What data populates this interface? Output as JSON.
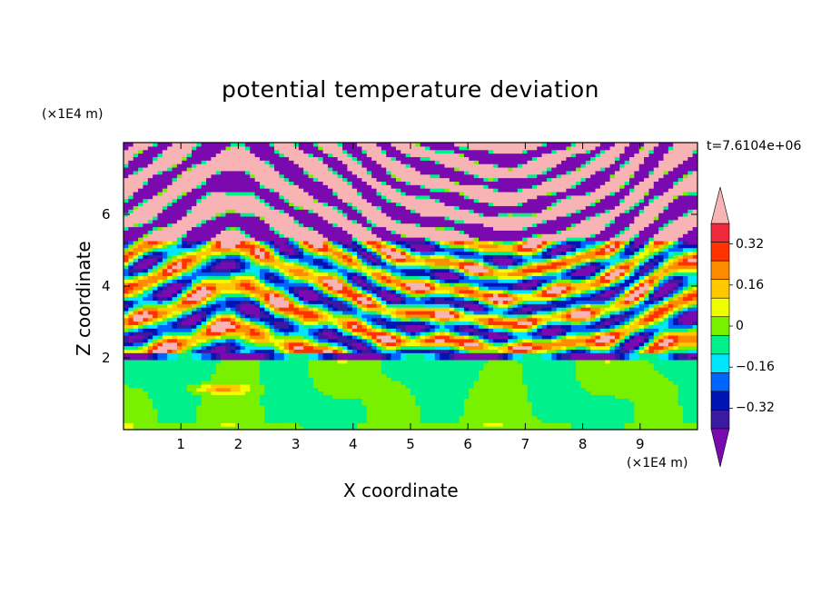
{
  "chart_data": {
    "type": "heatmap",
    "title": "potential temperature deviation",
    "xlabel": "X coordinate",
    "ylabel": "Z coordinate",
    "x_unit": "(×1E4 m)",
    "y_unit": "(×1E4 m)",
    "time_label": "t=7.6104e+06",
    "xlim": [
      0,
      10
    ],
    "ylim": [
      0,
      8
    ],
    "x_ticks": [
      "1",
      "2",
      "3",
      "4",
      "5",
      "6",
      "7",
      "8",
      "9"
    ],
    "y_ticks": [
      "2",
      "4",
      "6"
    ],
    "colorbar": {
      "levels": [
        -0.48,
        -0.4,
        -0.32,
        -0.24,
        -0.16,
        -0.08,
        0,
        0.08,
        0.16,
        0.24,
        0.32,
        0.4,
        0.48
      ],
      "tick_labels": [
        "0.32",
        "0.16",
        "0",
        "−0.16",
        "−0.32"
      ],
      "tick_values": [
        0.32,
        0.16,
        0,
        -0.16,
        -0.32
      ],
      "colors": [
        "#7a0ab0",
        "#3a1aa0",
        "#0014b4",
        "#0064ff",
        "#00e6ff",
        "#00f08c",
        "#78f000",
        "#f0ff00",
        "#ffc800",
        "#ff8c00",
        "#ff3200",
        "#f0283c",
        "#f8b4b4"
      ]
    },
    "layers": [
      {
        "z_from": 0,
        "z_to": 2.0,
        "description_values": [
          -0.08,
          0.08
        ],
        "dominant": "near zero / weakly positive"
      },
      {
        "z_from": 2.0,
        "z_to": 5.5,
        "dominant": "alternating positive and negative bands"
      },
      {
        "z_from": 5.5,
        "z_to": 8.0,
        "dominant": "alternating strong positive (pink) and strong negative (purple) bands"
      }
    ]
  }
}
